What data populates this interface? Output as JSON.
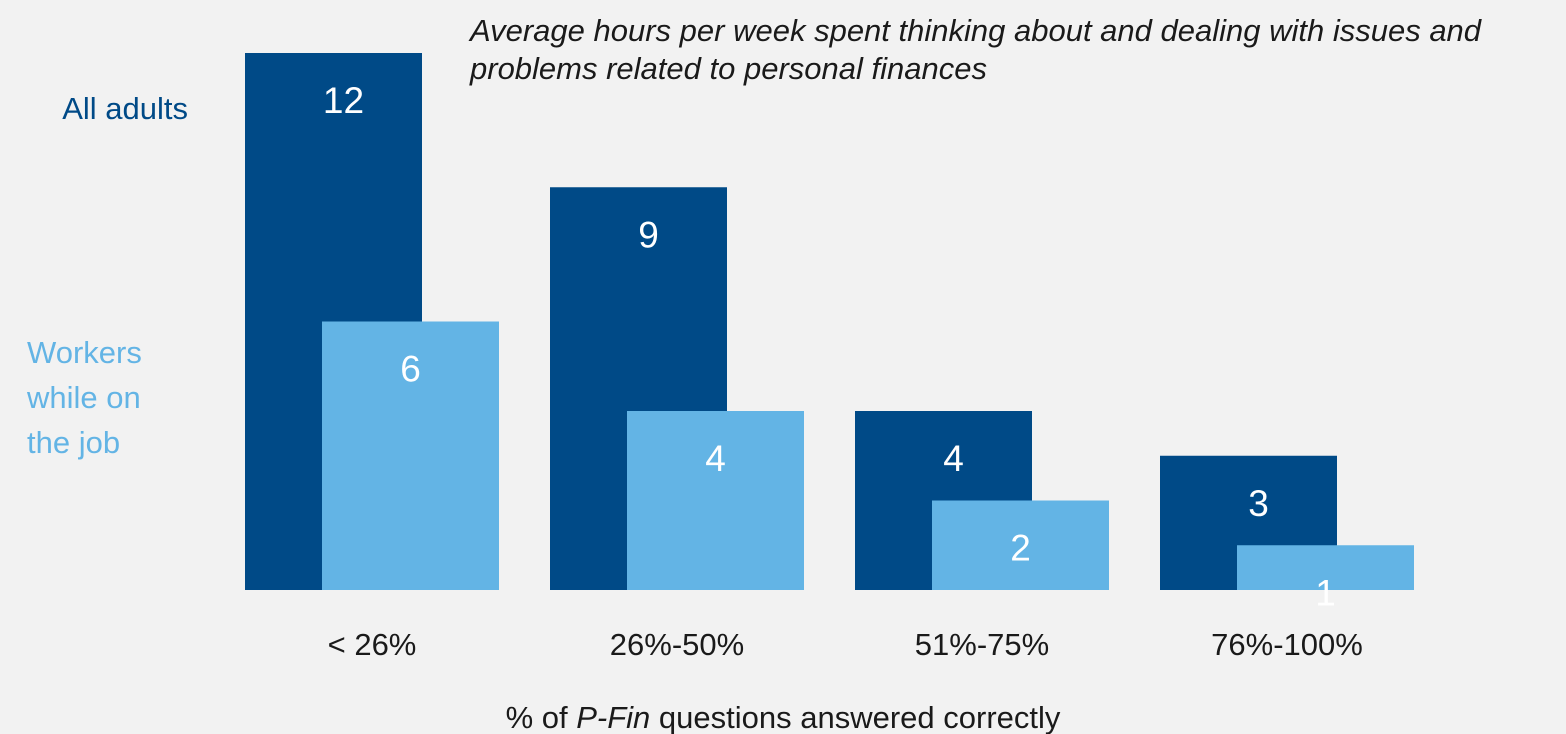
{
  "chart_data": {
    "type": "bar",
    "title": "Average hours per week spent thinking about and dealing with issues and problems related to personal finances",
    "xlabel": [
      "% of ",
      "P-Fin",
      " questions answered correctly"
    ],
    "categories": [
      "< 26%",
      "26%-50%",
      "51%-75%",
      "76%-100%"
    ],
    "series": [
      {
        "name": "All adults",
        "color": "#004a87",
        "values": [
          12,
          9,
          4,
          3
        ]
      },
      {
        "name": "Workers while on the job",
        "color": "#63b4e5",
        "values": [
          6,
          4,
          2,
          1
        ]
      }
    ]
  }
}
